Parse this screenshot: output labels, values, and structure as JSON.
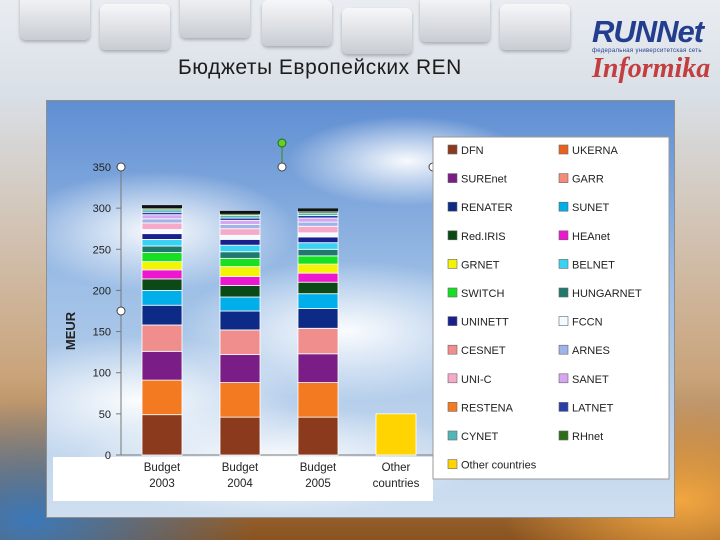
{
  "title": "Бюджеты Европейских REN",
  "logo": {
    "name": "RUNNet",
    "tagline": "федеральная университетская сеть",
    "sub": "Informika"
  },
  "chart_data": {
    "type": "bar",
    "stacked": true,
    "ylabel": "MEUR",
    "ylim": [
      0,
      350
    ],
    "yticks": [
      0,
      50,
      100,
      150,
      200,
      250,
      300,
      350
    ],
    "grid": false,
    "legend_position": "right",
    "categories": [
      [
        "Budget",
        "2003"
      ],
      [
        "Budget",
        "2004"
      ],
      [
        "Budget",
        "2005"
      ],
      [
        "Other",
        "countries"
      ]
    ],
    "series": [
      {
        "name": "DFN",
        "color": "#8b3a1e",
        "values": [
          49,
          46,
          46,
          0
        ]
      },
      {
        "name": "RESTENA",
        "color": "#f47a21",
        "values": [
          42,
          42,
          42,
          0
        ]
      },
      {
        "name": "SUREnet",
        "color": "#7a1d86",
        "values": [
          35,
          34,
          35,
          0
        ]
      },
      {
        "name": "CESNET",
        "color": "#f08e8e",
        "values": [
          32,
          30,
          31,
          0
        ]
      },
      {
        "name": "RENATER",
        "color": "#0d2a86",
        "values": [
          24,
          23,
          24,
          0
        ]
      },
      {
        "name": "SUNET",
        "color": "#00aeea",
        "values": [
          18,
          17,
          18,
          0
        ]
      },
      {
        "name": "Red.IRIS",
        "color": "#0b4a16",
        "values": [
          14,
          14,
          14,
          0
        ]
      },
      {
        "name": "HEAnet",
        "color": "#ec17cf",
        "values": [
          11,
          11,
          11,
          0
        ]
      },
      {
        "name": "GRNET",
        "color": "#f3f305",
        "values": [
          10,
          12,
          11,
          0
        ]
      },
      {
        "name": "SWITCH",
        "color": "#17df24",
        "values": [
          11,
          10,
          10,
          0
        ]
      },
      {
        "name": "HUNGARNET",
        "color": "#1e7a6e",
        "values": [
          8,
          8,
          8,
          0
        ]
      },
      {
        "name": "BELNET",
        "color": "#3ad2f2",
        "values": [
          8,
          8,
          8,
          0
        ]
      },
      {
        "name": "UNINETT",
        "color": "#1a1f8e",
        "values": [
          7,
          7,
          7,
          0
        ]
      },
      {
        "name": "FCCN",
        "color": "#f2fbff",
        "values": [
          5,
          5,
          5,
          0
        ]
      },
      {
        "name": "UNI-C",
        "color": "#f6a9c8",
        "values": [
          8,
          8,
          8,
          0
        ]
      },
      {
        "name": "ARNES",
        "color": "#9db4e6",
        "values": [
          5,
          5,
          5,
          0
        ]
      },
      {
        "name": "SANET",
        "color": "#d6a6f0",
        "values": [
          5,
          5,
          5,
          0
        ]
      },
      {
        "name": "LATNET",
        "color": "#2a3ea8",
        "values": [
          3,
          3,
          3,
          0
        ]
      },
      {
        "name": "CYNET",
        "color": "#52b6b6",
        "values": [
          3,
          3,
          3,
          0
        ]
      },
      {
        "name": "RHnet",
        "color": "#2e6e1a",
        "values": [
          2,
          2,
          2,
          0
        ]
      },
      {
        "name": "UKERNA",
        "color": "#e8621e",
        "values": [
          0,
          0,
          0,
          0
        ]
      },
      {
        "name": "GARR",
        "color": "#f48a78",
        "values": [
          0,
          0,
          0,
          0
        ]
      },
      {
        "name": "Other countries",
        "color": "#ffd400",
        "values": [
          0,
          0,
          0,
          50
        ]
      }
    ],
    "legend_order": [
      "DFN",
      "UKERNA",
      "SUREnet",
      "GARR",
      "RENATER",
      "SUNET",
      "Red.IRIS",
      "HEAnet",
      "GRNET",
      "BELNET",
      "SWITCH",
      "HUNGARNET",
      "UNINETT",
      "FCCN",
      "CESNET",
      "ARNES",
      "UNI-C",
      "SANET",
      "RESTENA",
      "LATNET",
      "CYNET",
      "RHnet",
      "Other countries"
    ]
  }
}
